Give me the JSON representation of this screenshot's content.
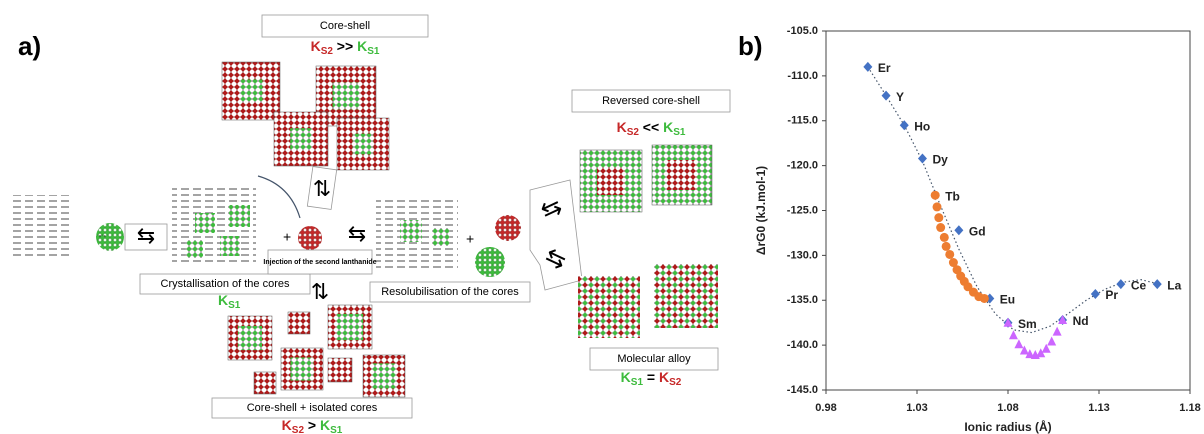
{
  "panel_a": {
    "label": "a)",
    "core_shell": {
      "title": "Core-shell",
      "relation": [
        "K",
        "S2",
        " >> ",
        "K",
        "S1"
      ]
    },
    "reversed": {
      "title": "Reversed core-shell",
      "relation": [
        "K",
        "S2",
        " << ",
        "K",
        "S1"
      ]
    },
    "crystallisation": {
      "title": "Crystallisation of the cores",
      "relation": [
        "K",
        "S1"
      ]
    },
    "injection": {
      "title": "Injection of the second lanthanide"
    },
    "resolubilisation": {
      "title": "Resolubilisation of the cores"
    },
    "alloy": {
      "title": "Molecular alloy",
      "relation": [
        "K",
        "S1",
        " = ",
        "K",
        "S2"
      ]
    },
    "isolated": {
      "title": "Core-shell + isolated cores",
      "relation": [
        "K",
        "S2",
        " > ",
        "K",
        "S1"
      ]
    }
  },
  "chart_data": {
    "type": "scatter",
    "label": "b)",
    "x_label": "Ionic radius (Å)",
    "y_label": "ΔrG0 (kJ.mol-1)",
    "xlim": [
      0.98,
      1.18
    ],
    "xticks": [
      0.98,
      1.03,
      1.08,
      1.13,
      1.18
    ],
    "ylim": [
      -145,
      -105
    ],
    "yticks": [
      {
        "value": -145,
        "label": "-145.0"
      },
      {
        "value": -140,
        "label": "-140.0"
      },
      {
        "value": -135,
        "label": "-135.0"
      },
      {
        "value": -130,
        "label": "-130.0"
      },
      {
        "value": -125,
        "label": "-125.0"
      },
      {
        "value": -120,
        "label": "-120.0"
      },
      {
        "value": -115,
        "label": "-115.0"
      },
      {
        "value": -110,
        "label": "-110.0"
      },
      {
        "value": -105,
        "label": "-105.0"
      }
    ],
    "series": [
      {
        "marker": "line",
        "color": "#44546a",
        "x": [
          1.003,
          1.013,
          1.023,
          1.033,
          1.043,
          1.053,
          1.063,
          1.073,
          1.083,
          1.093,
          1.103,
          1.113,
          1.123,
          1.133,
          1.143,
          1.153,
          1.163
        ],
        "values": [
          -109,
          -112.2,
          -115.5,
          -119.5,
          -124.5,
          -129.3,
          -133.5,
          -136.5,
          -138.3,
          -138.6,
          -137.9,
          -136.5,
          -135,
          -133.8,
          -133,
          -132.7,
          -133.2
        ]
      },
      {
        "marker": "diamond",
        "color": "#4472c4",
        "x": [
          1.003,
          1.013,
          1.023,
          1.033,
          1.04,
          1.053,
          1.07,
          1.08,
          1.11,
          1.128,
          1.142,
          1.162
        ],
        "values": [
          -109,
          -112.2,
          -115.5,
          -119.2,
          -123.3,
          -127.2,
          -134.8,
          -137.5,
          -137.2,
          -134.3,
          -133.2,
          -133.2
        ],
        "labels": [
          "Er",
          "Y",
          "Ho",
          "Dy",
          "Tb",
          "Gd",
          "Eu",
          "Sm",
          "Nd",
          "Pr",
          "Ce",
          "La"
        ]
      },
      {
        "marker": "circle",
        "color": "#ed7d31",
        "x": [
          1.04,
          1.041,
          1.042,
          1.043,
          1.045,
          1.046,
          1.048,
          1.05,
          1.052,
          1.054,
          1.056,
          1.058,
          1.061,
          1.064,
          1.067
        ],
        "values": [
          -123.3,
          -124.6,
          -125.8,
          -126.9,
          -128,
          -129,
          -129.9,
          -130.8,
          -131.6,
          -132.3,
          -132.9,
          -133.5,
          -134.1,
          -134.6,
          -134.8
        ]
      },
      {
        "marker": "triangle",
        "color": "#cc66ff",
        "x": [
          1.08,
          1.083,
          1.086,
          1.089,
          1.092,
          1.095,
          1.098,
          1.101,
          1.104,
          1.107,
          1.11
        ],
        "values": [
          -137.5,
          -138.9,
          -139.9,
          -140.6,
          -141,
          -141.1,
          -140.9,
          -140.4,
          -139.6,
          -138.5,
          -137.2
        ]
      }
    ]
  }
}
